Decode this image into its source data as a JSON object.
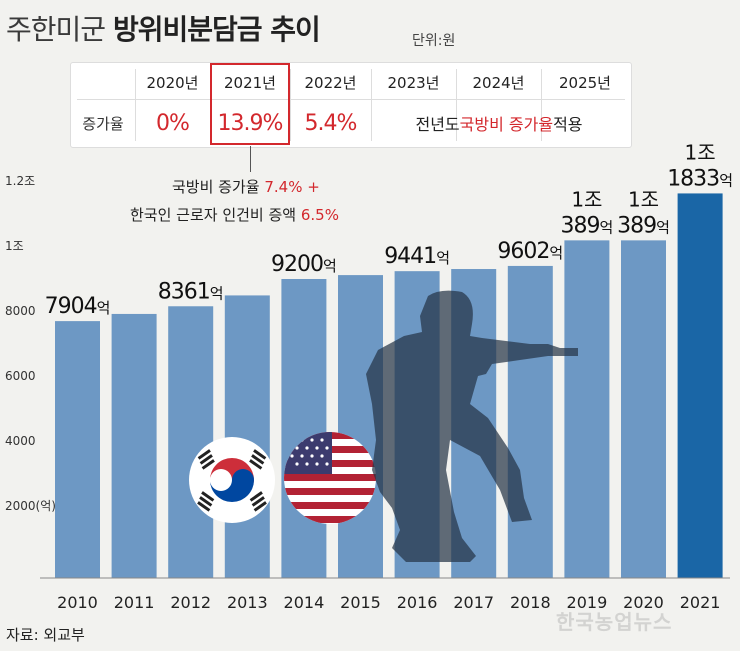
{
  "title": {
    "light": "주한미군",
    "bold": "방위비분담금 추이"
  },
  "unit": "단위:원",
  "rate_table": {
    "row_label": "증가율",
    "years": [
      "2020년",
      "2021년",
      "2022년",
      "2023년",
      "2024년",
      "2025년"
    ],
    "values": [
      "0%",
      "13.9%",
      "5.4%"
    ],
    "note": {
      "pre": "전년도 ",
      "red": "국방비 증가율",
      "post": " 적용"
    }
  },
  "callout": {
    "line1_prefix": "국방비 증가율 ",
    "line1_red": "7.4% +",
    "line2_prefix": "한국인 근로자 인건비 증액 ",
    "line2_red": "6.5%"
  },
  "colors": {
    "bar": "#6d98c4",
    "bar_highlight": "#1a66a6",
    "red": "#d3282d"
  },
  "chart_data": {
    "type": "bar",
    "categories": [
      "2010",
      "2011",
      "2012",
      "2013",
      "2014",
      "2015",
      "2016",
      "2017",
      "2018",
      "2019",
      "2020",
      "2021"
    ],
    "values": [
      7904,
      8125,
      8361,
      8695,
      9200,
      9320,
      9441,
      9507,
      9602,
      10389,
      10389,
      11833
    ],
    "value_labels": [
      {
        "index": 0,
        "text": "7904",
        "suffix": "억"
      },
      {
        "index": 2,
        "text": "8361",
        "suffix": "억"
      },
      {
        "index": 4,
        "text": "9200",
        "suffix": "억"
      },
      {
        "index": 6,
        "text": "9441",
        "suffix": "억"
      },
      {
        "index": 8,
        "text": "9602",
        "suffix": "억"
      },
      {
        "index": 9,
        "top": "1조",
        "text": "389",
        "suffix": "억"
      },
      {
        "index": 10,
        "top": "1조",
        "text": "389",
        "suffix": "억"
      },
      {
        "index": 11,
        "top": "1조",
        "text": "1833",
        "suffix": "억"
      }
    ],
    "y_ticks": [
      {
        "value": 2000,
        "label": "2000(억)"
      },
      {
        "value": 4000,
        "label": "4000"
      },
      {
        "value": 6000,
        "label": "6000"
      },
      {
        "value": 8000,
        "label": "8000"
      },
      {
        "value": 10000,
        "label": "1조"
      },
      {
        "value": 12000,
        "label": "1.2조"
      }
    ],
    "ylim": [
      0,
      12000
    ],
    "highlight_index": 11
  },
  "source": "자료: 외교부",
  "watermark": "한국농업뉴스"
}
